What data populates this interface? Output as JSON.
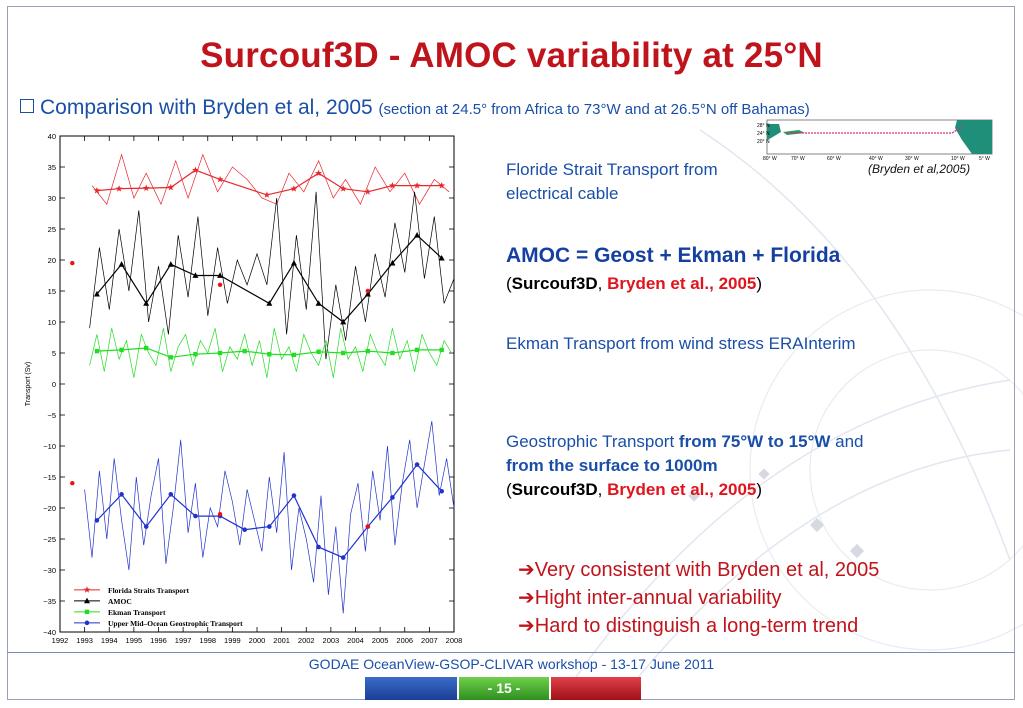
{
  "slide": {
    "title": "Surcouf3D - AMOC variability at 25°N",
    "subtitle_main": "Comparison with Bryden et al, 2005",
    "subtitle_detail": "(section at 24.5° from Africa to 73°W and at 26.5°N off Bahamas)",
    "map_caption": "(Bryden et al,2005)",
    "map_lat_labels": [
      "28° N",
      "24° N",
      "20° N"
    ],
    "map_lon_labels": [
      "80° W",
      "70° W",
      "60° W",
      "40° W",
      "30° W",
      "10° W",
      "5° W"
    ],
    "annotations": {
      "florida": "Floride Strait Transport from electrical cable",
      "amoc_formula": "AMOC = Geost + Ekman + Florida",
      "paren_open": "(",
      "surcouf": "Surcouf3D",
      "comma": ", ",
      "bryden": "Bryden et al., 2005",
      "paren_close": ")",
      "ekman": "Ekman Transport from wind stress ERAInterim",
      "geo_1": "Geostrophic Transport ",
      "geo_2": "from 75°W to 15°W",
      "geo_3": " and ",
      "geo_4": "from the surface to 1000m"
    },
    "conclusions": [
      "➔Very consistent with Bryden et al, 2005",
      "➔Hight inter-annual variability",
      "➔Hard to distinguish a long-term trend"
    ],
    "footer": "GODAE OceanView-GSOP-CLIVAR workshop  -  13-17 June 2011",
    "page": "- 15 -"
  },
  "colors": {
    "florida": "#e8282c",
    "amoc": "#000000",
    "ekman": "#22dd22",
    "geo": "#2233cc",
    "title": "#c0141c",
    "text": "#1a4fa8"
  },
  "chart_data": {
    "type": "line",
    "ylabel": "Transport (Sv)",
    "xlabel": "",
    "xlim": [
      1992,
      2008
    ],
    "ylim": [
      -40,
      40
    ],
    "x_ticks": [
      1992,
      1993,
      1994,
      1995,
      1996,
      1997,
      1998,
      1999,
      2000,
      2001,
      2002,
      2003,
      2004,
      2005,
      2006,
      2007,
      2008
    ],
    "y_ticks": [
      40,
      35,
      30,
      25,
      20,
      15,
      10,
      5,
      0,
      -5,
      -10,
      -15,
      -20,
      -25,
      -30,
      -35,
      -40
    ],
    "legend": {
      "placement": "bottom-left",
      "entries": [
        "Florida Straits Transport",
        "AMOC",
        "Ekman Transport",
        "Upper Mid–Ocean Geostrophic Transport"
      ]
    },
    "series": [
      {
        "name": "Florida Straits Transport",
        "color": "#e8282c",
        "marker": "star",
        "x": [
          1993.3,
          1993.9,
          1994.5,
          1995.0,
          1995.5,
          1996.1,
          1996.7,
          1997.2,
          1997.8,
          1998.4,
          1999.0,
          1999.6,
          2000.2,
          2000.8,
          2001.3,
          2001.9,
          2002.5,
          2003.1,
          2003.6,
          2004.2,
          2004.8,
          2005.4,
          2006.0,
          2006.6,
          2007.2,
          2007.8
        ],
        "y": [
          32,
          29,
          37,
          30,
          34,
          29,
          36,
          30,
          37,
          31,
          35,
          33,
          30,
          29,
          34,
          31,
          36,
          30,
          33,
          29,
          35,
          31,
          34,
          29,
          33,
          31
        ]
      },
      {
        "name": "Florida Straits Transport annual",
        "color": "#e8282c",
        "marker": "star",
        "x": [
          1993.5,
          1994.4,
          1995.5,
          1996.5,
          1997.5,
          1998.5,
          2000.4,
          2001.5,
          2002.5,
          2003.5,
          2004.5,
          2005.5,
          2006.5,
          2007.5
        ],
        "y": [
          31.2,
          31.5,
          31.6,
          31.7,
          34.5,
          33.0,
          30.5,
          31.5,
          34.0,
          31.5,
          31.0,
          32.0,
          32.0,
          32.0
        ]
      },
      {
        "name": "AMOC",
        "color": "#000000",
        "marker": "triangle",
        "x": [
          1993.2,
          1993.6,
          1994.0,
          1994.4,
          1994.8,
          1995.2,
          1995.6,
          1996.0,
          1996.4,
          1996.8,
          1997.2,
          1997.6,
          1998.0,
          1998.4,
          1998.8,
          1999.2,
          1999.6,
          2000.0,
          2000.4,
          2000.8,
          2001.2,
          2001.6,
          2002.0,
          2002.4,
          2002.8,
          2003.2,
          2003.6,
          2004.0,
          2004.4,
          2004.8,
          2005.2,
          2005.6,
          2006.0,
          2006.4,
          2006.8,
          2007.2,
          2007.6,
          2008.0
        ],
        "y": [
          9,
          22,
          12,
          25,
          15,
          28,
          10,
          19,
          8,
          24,
          14,
          27,
          11,
          22,
          13,
          20,
          16,
          21,
          16,
          30,
          8,
          24,
          12,
          31,
          4,
          16,
          7,
          19,
          10,
          21,
          14,
          26,
          18,
          31,
          17,
          27,
          13,
          17
        ]
      },
      {
        "name": "AMOC annual",
        "color": "#000000",
        "marker": "triangle",
        "x": [
          1993.5,
          1994.5,
          1995.5,
          1996.5,
          1997.5,
          1998.5,
          2000.5,
          2001.5,
          2002.5,
          2003.5,
          2004.5,
          2005.5,
          2006.5,
          2007.5
        ],
        "y": [
          14.5,
          19.3,
          13.0,
          19.3,
          17.5,
          17.5,
          13.0,
          19.5,
          13.0,
          10.0,
          14.5,
          19.5,
          24.0,
          20.3
        ]
      },
      {
        "name": "Ekman Transport",
        "color": "#22dd22",
        "marker": "square",
        "x": [
          1993.2,
          1993.5,
          1993.8,
          1994.1,
          1994.4,
          1994.7,
          1995.0,
          1995.3,
          1995.6,
          1995.9,
          1996.2,
          1996.5,
          1996.8,
          1997.1,
          1997.4,
          1997.7,
          1998.0,
          1998.3,
          1998.6,
          1998.9,
          1999.2,
          1999.5,
          1999.8,
          2000.1,
          2000.4,
          2000.7,
          2001.0,
          2001.3,
          2001.6,
          2001.9,
          2002.2,
          2002.5,
          2002.8,
          2003.1,
          2003.4,
          2003.7,
          2004.0,
          2004.3,
          2004.6,
          2004.9,
          2005.2,
          2005.5,
          2005.8,
          2006.1,
          2006.4,
          2006.7,
          2007.0,
          2007.3,
          2007.6,
          2007.9
        ],
        "y": [
          3,
          8,
          2,
          9,
          4,
          7,
          1,
          8,
          5,
          3,
          9,
          2,
          6,
          8,
          3,
          7,
          5,
          9,
          2,
          6,
          4,
          8,
          3,
          7,
          1,
          9,
          4,
          6,
          2,
          8,
          5,
          3,
          7,
          1,
          9,
          4,
          6,
          2,
          8,
          5,
          3,
          9,
          4,
          7,
          2,
          8,
          5,
          3,
          7,
          5
        ]
      },
      {
        "name": "Ekman annual",
        "color": "#22dd22",
        "marker": "square",
        "x": [
          1993.5,
          1994.5,
          1995.5,
          1996.5,
          1997.5,
          1998.5,
          1999.5,
          2000.5,
          2001.5,
          2002.5,
          2003.5,
          2004.5,
          2005.5,
          2006.5,
          2007.5
        ],
        "y": [
          5.3,
          5.5,
          5.8,
          4.3,
          4.8,
          5.0,
          5.3,
          4.8,
          4.7,
          5.2,
          5.0,
          5.3,
          5.0,
          5.5,
          5.5
        ]
      },
      {
        "name": "Upper Mid–Ocean Geostrophic Transport",
        "color": "#2233cc",
        "marker": "circle",
        "x": [
          1993.0,
          1993.3,
          1993.6,
          1993.9,
          1994.2,
          1994.5,
          1994.8,
          1995.1,
          1995.4,
          1995.7,
          1996.0,
          1996.3,
          1996.6,
          1996.9,
          1997.2,
          1997.5,
          1997.8,
          1998.1,
          1998.4,
          1998.7,
          1999.0,
          1999.3,
          1999.6,
          1999.9,
          2000.2,
          2000.5,
          2000.8,
          2001.1,
          2001.4,
          2001.7,
          2002.0,
          2002.3,
          2002.6,
          2002.9,
          2003.2,
          2003.5,
          2003.8,
          2004.1,
          2004.4,
          2004.7,
          2005.0,
          2005.3,
          2005.6,
          2005.9,
          2006.2,
          2006.5,
          2006.8,
          2007.1,
          2007.4,
          2007.7,
          2008.0
        ],
        "y": [
          -17,
          -28,
          -14,
          -25,
          -12,
          -22,
          -30,
          -15,
          -26,
          -18,
          -12,
          -29,
          -20,
          -9,
          -24,
          -16,
          -28,
          -20,
          -23,
          -14,
          -19,
          -26,
          -17,
          -22,
          -27,
          -15,
          -24,
          -11,
          -30,
          -20,
          -25,
          -32,
          -18,
          -34,
          -23,
          -37,
          -21,
          -16,
          -27,
          -14,
          -22,
          -10,
          -26,
          -16,
          -9,
          -20,
          -13,
          -6,
          -18,
          -12,
          -20
        ]
      },
      {
        "name": "Geostrophic annual",
        "color": "#2233cc",
        "marker": "circle",
        "x": [
          1993.5,
          1994.5,
          1995.5,
          1996.5,
          1997.5,
          1998.5,
          1999.5,
          2000.5,
          2001.5,
          2002.5,
          2003.5,
          2004.5,
          2005.5,
          2006.5,
          2007.5
        ],
        "y": [
          -22.0,
          -17.8,
          -23.0,
          -17.8,
          -21.3,
          -21.3,
          -23.5,
          -23.0,
          -18.0,
          -26.3,
          -28.0,
          -23.0,
          -18.3,
          -13.0,
          -17.3
        ]
      }
    ],
    "bryden_points": [
      {
        "x": 1992.5,
        "y": 19.5,
        "series": "AMOC"
      },
      {
        "x": 1998.5,
        "y": 16.0,
        "series": "AMOC"
      },
      {
        "x": 2004.5,
        "y": 15.0,
        "series": "AMOC"
      },
      {
        "x": 1992.5,
        "y": -16.0,
        "series": "Geostrophic"
      },
      {
        "x": 1998.5,
        "y": -21.0,
        "series": "Geostrophic"
      },
      {
        "x": 2004.5,
        "y": -23.0,
        "series": "Geostrophic"
      }
    ]
  }
}
